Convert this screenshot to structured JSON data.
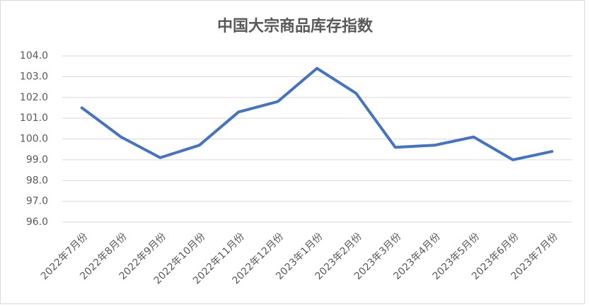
{
  "chart_data": {
    "type": "line",
    "title": "中国大宗商品库存指数",
    "categories": [
      "2022年7月份",
      "2022年8月份",
      "2022年9月份",
      "2022年10月份",
      "2022年11月份",
      "2022年12月份",
      "2023年1月份",
      "2023年2月份",
      "2023年3月份",
      "2023年4月份",
      "2023年5月份",
      "2023年6月份",
      "2023年7月份"
    ],
    "values": [
      101.5,
      100.1,
      99.1,
      99.7,
      101.3,
      101.8,
      103.4,
      102.2,
      99.6,
      99.7,
      100.1,
      99.0,
      99.4
    ],
    "color": "#4472c4",
    "ylim": [
      96,
      104
    ],
    "yticks": [
      {
        "value": 96,
        "label": "96.0"
      },
      {
        "value": 97,
        "label": "97.0"
      },
      {
        "value": 98,
        "label": "98.0"
      },
      {
        "value": 99,
        "label": "99.0"
      },
      {
        "value": 100,
        "label": "100.0"
      },
      {
        "value": 101,
        "label": "101.0"
      },
      {
        "value": 102,
        "label": "102.0"
      },
      {
        "value": 103,
        "label": "103.0"
      },
      {
        "value": 104,
        "label": "104.0"
      }
    ],
    "grid": true
  }
}
